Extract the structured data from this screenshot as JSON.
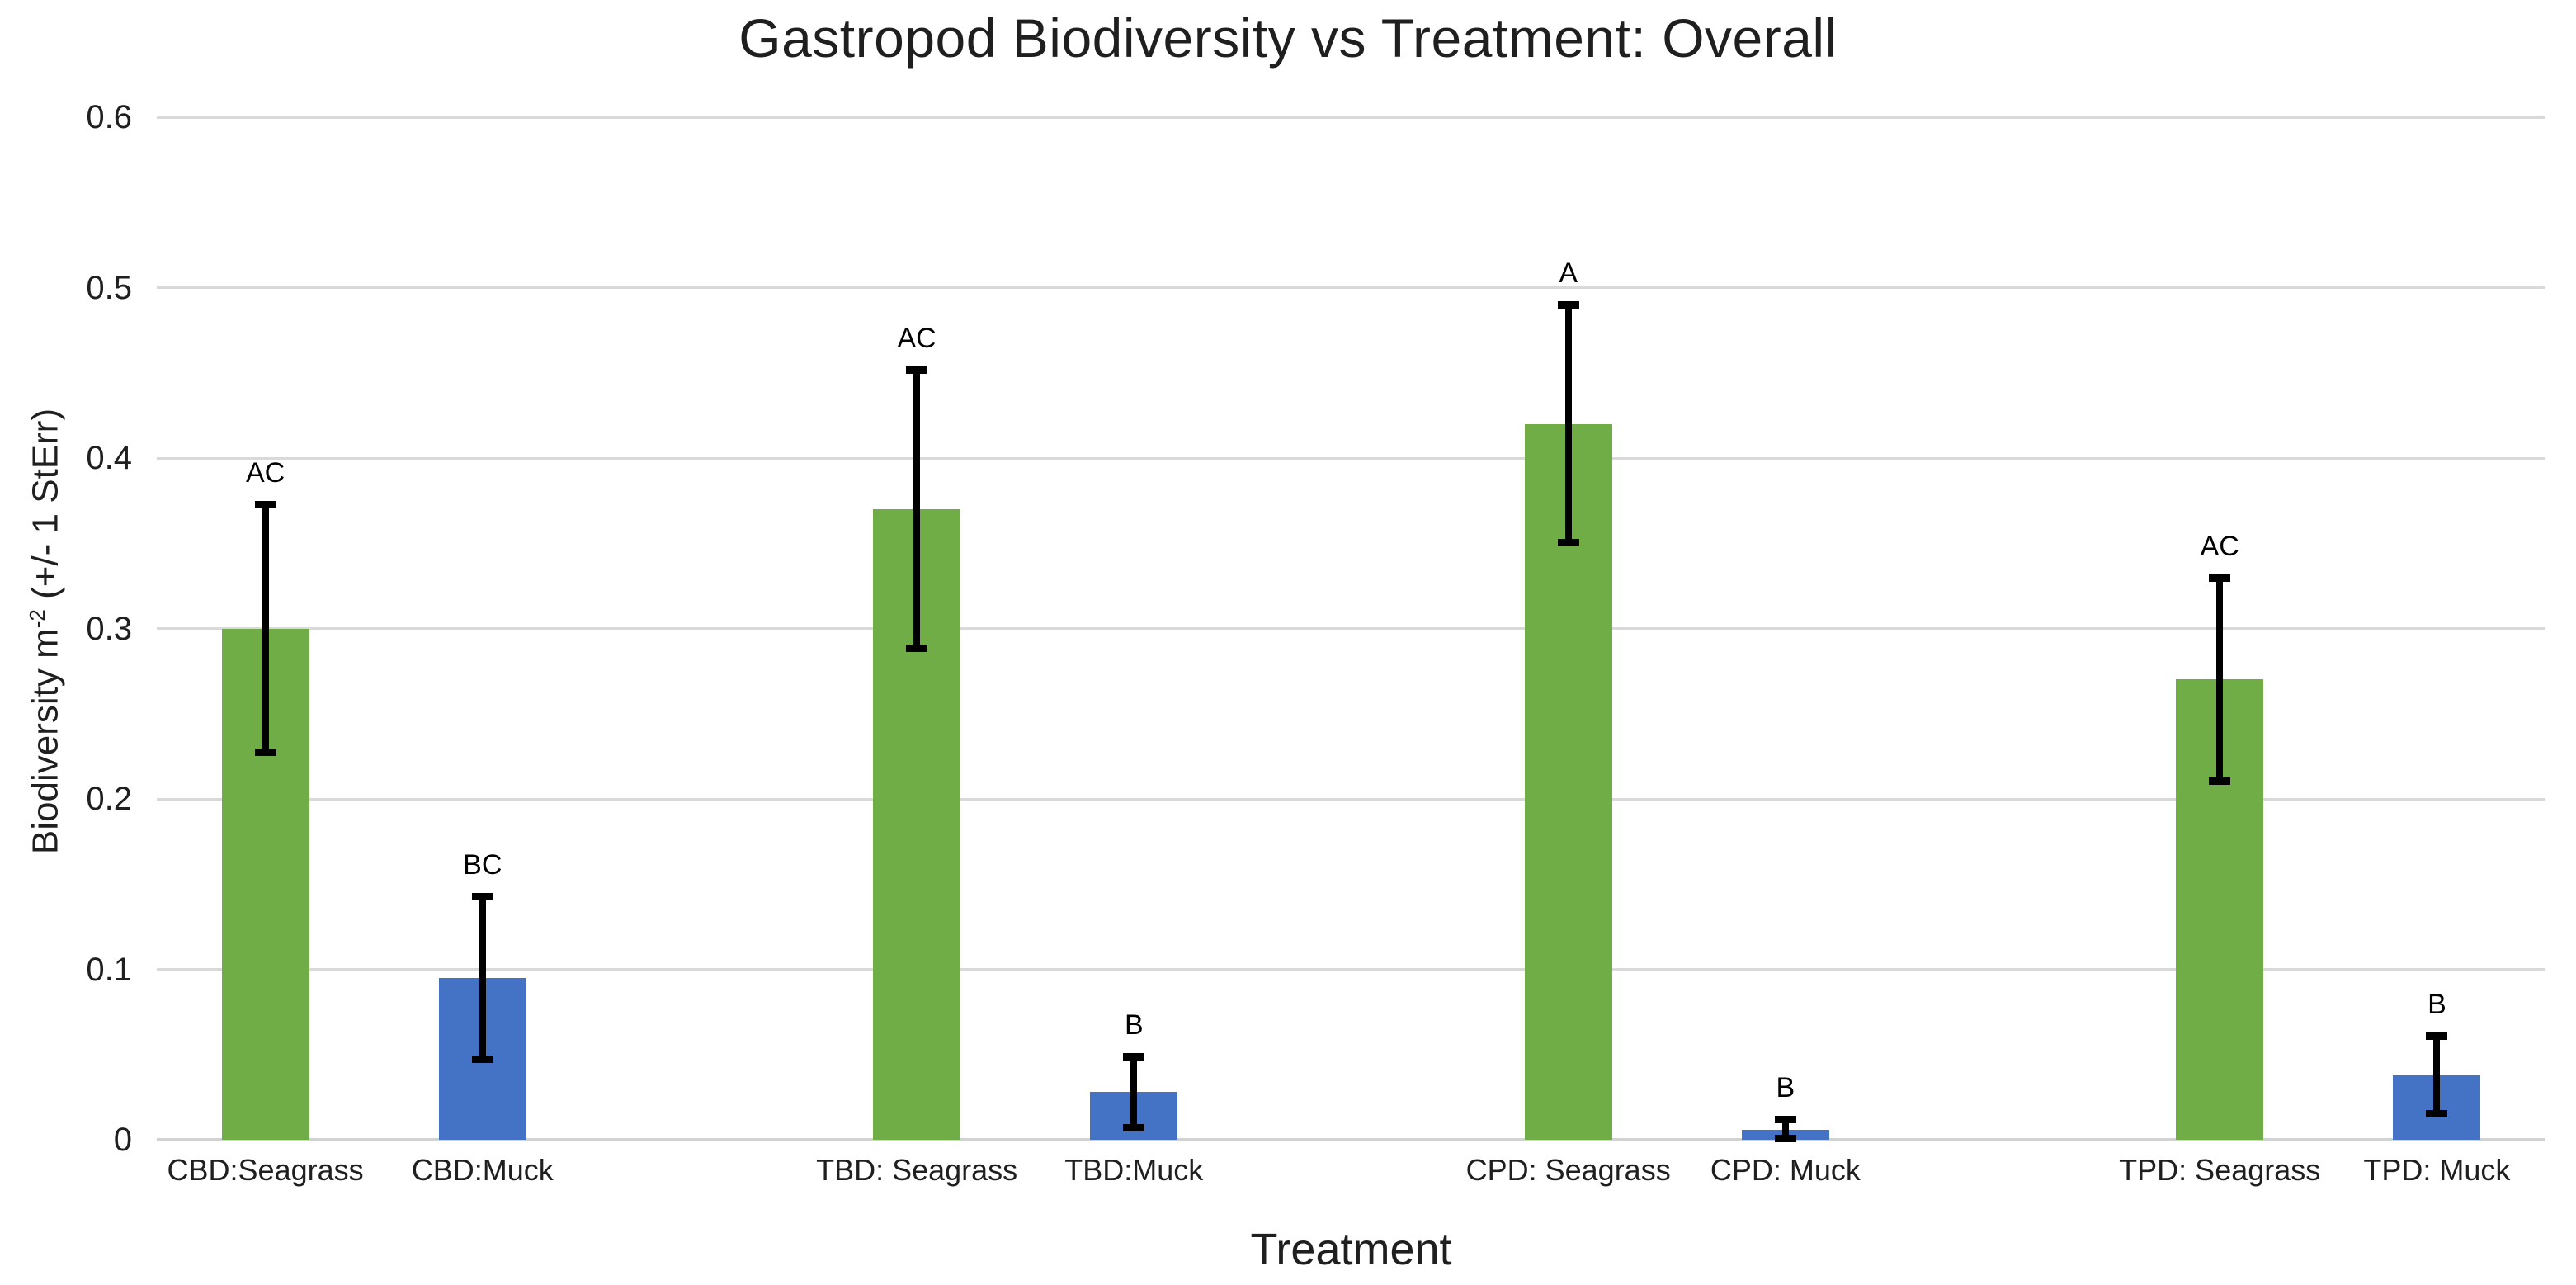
{
  "chart_data": {
    "type": "bar",
    "title": "Gastropod Biodiversity vs Treatment: Overall",
    "xlabel": "Treatment",
    "ylabel": {
      "main": "Biodiversity m",
      "sup": "-2",
      "rest": " (+/- 1 StErr)"
    },
    "ylim": [
      0,
      0.6
    ],
    "grid": true,
    "legend": false,
    "slots": 11,
    "yticks": [
      {
        "v": 0,
        "label": "0"
      },
      {
        "v": 0.1,
        "label": "0.1"
      },
      {
        "v": 0.2,
        "label": "0.2"
      },
      {
        "v": 0.3,
        "label": "0.3"
      },
      {
        "v": 0.4,
        "label": "0.4"
      },
      {
        "v": 0.5,
        "label": "0.5"
      },
      {
        "v": 0.6,
        "label": "0.6"
      }
    ],
    "bars": [
      {
        "slot": 0,
        "category": "CBD:Seagrass",
        "value": 0.3,
        "stderr": 0.073,
        "sig_letter": "AC",
        "color_key": "seagrass"
      },
      {
        "slot": 1,
        "category": "CBD:Muck",
        "value": 0.095,
        "stderr": 0.048,
        "sig_letter": "BC",
        "color_key": "muck"
      },
      {
        "slot": 3,
        "category": "TBD: Seagrass",
        "value": 0.37,
        "stderr": 0.082,
        "sig_letter": "AC",
        "color_key": "seagrass"
      },
      {
        "slot": 4,
        "category": "TBD:Muck",
        "value": 0.028,
        "stderr": 0.021,
        "sig_letter": "B",
        "color_key": "muck"
      },
      {
        "slot": 6,
        "category": "CPD: Seagrass",
        "value": 0.42,
        "stderr": 0.07,
        "sig_letter": "A",
        "color_key": "seagrass"
      },
      {
        "slot": 7,
        "category": "CPD: Muck",
        "value": 0.006,
        "stderr": 0.006,
        "sig_letter": "B",
        "color_key": "muck"
      },
      {
        "slot": 9,
        "category": "TPD: Seagrass",
        "value": 0.27,
        "stderr": 0.06,
        "sig_letter": "AC",
        "color_key": "seagrass"
      },
      {
        "slot": 10,
        "category": "TPD: Muck",
        "value": 0.038,
        "stderr": 0.023,
        "sig_letter": "B",
        "color_key": "muck"
      }
    ],
    "colors": {
      "seagrass": "#70AD47",
      "muck": "#4472C4",
      "grid": "#D9D9D9",
      "baseline": "#D2D2D2",
      "error": "#000000",
      "text": "#1f1f1f"
    }
  }
}
